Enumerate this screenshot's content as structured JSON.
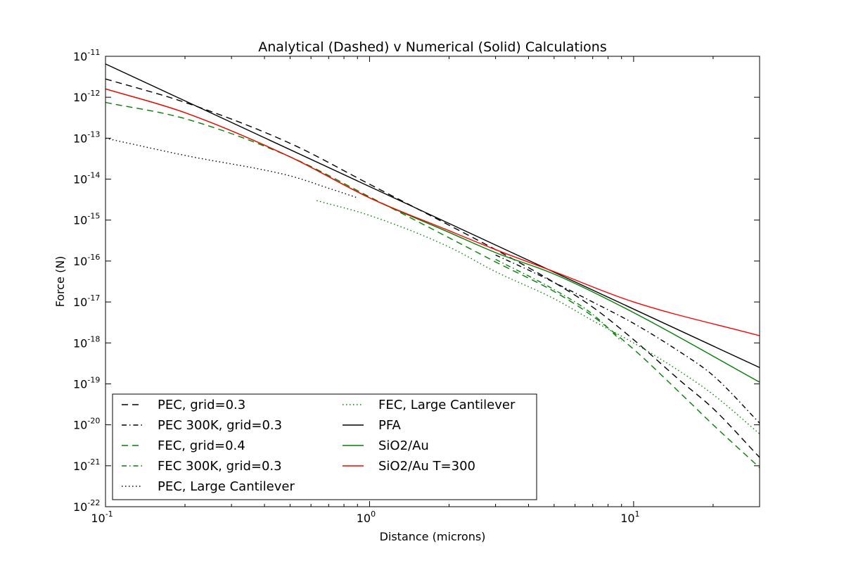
{
  "chart_data": {
    "type": "line",
    "title": "Analytical (Dashed) v Numerical (Solid) Calculations",
    "xlabel": "Distance (microns)",
    "ylabel": "Force (N)",
    "xscale": "log",
    "yscale": "log",
    "xlim": [
      0.1,
      30
    ],
    "ylim": [
      1e-22,
      1e-11
    ],
    "grid": false,
    "legend_location": "lower-left",
    "legend_columns": 2,
    "x_ticks": [
      {
        "base": "10",
        "exp": "-1",
        "value": 0.1
      },
      {
        "base": "10",
        "exp": "0",
        "value": 1
      },
      {
        "base": "10",
        "exp": "1",
        "value": 10
      }
    ],
    "y_ticks": [
      {
        "base": "10",
        "exp": "-11",
        "value": 1e-11
      },
      {
        "base": "10",
        "exp": "-12",
        "value": 1e-12
      },
      {
        "base": "10",
        "exp": "-13",
        "value": 1e-13
      },
      {
        "base": "10",
        "exp": "-14",
        "value": 1e-14
      },
      {
        "base": "10",
        "exp": "-15",
        "value": 1e-15
      },
      {
        "base": "10",
        "exp": "-16",
        "value": 1e-16
      },
      {
        "base": "10",
        "exp": "-17",
        "value": 1e-17
      },
      {
        "base": "10",
        "exp": "-18",
        "value": 1e-18
      },
      {
        "base": "10",
        "exp": "-19",
        "value": 1e-19
      },
      {
        "base": "10",
        "exp": "-20",
        "value": 1e-20
      },
      {
        "base": "10",
        "exp": "-21",
        "value": 1e-21
      },
      {
        "base": "10",
        "exp": "-22",
        "value": 1e-22
      }
    ],
    "series": [
      {
        "name": "PEC, grid=0.3",
        "color": "#000000",
        "style": "dashed",
        "x": [
          0.1,
          0.2,
          0.5,
          1,
          2,
          3,
          5,
          7,
          10,
          15,
          20,
          30
        ],
        "y": [
          2.8e-12,
          7.5e-13,
          7.5e-14,
          7.5e-15,
          7.5e-16,
          1.9e-16,
          3e-17,
          7.5e-18,
          1.2e-18,
          1.2e-19,
          2.5e-20,
          1.6e-21
        ]
      },
      {
        "name": "PEC 300K, grid=0.3",
        "color": "#000000",
        "style": "dashdot",
        "x": [
          3,
          4,
          5,
          7,
          10,
          15,
          20,
          30
        ],
        "y": [
          1.4e-16,
          6e-17,
          3e-17,
          1e-17,
          3e-18,
          6e-19,
          1.6e-19,
          1.1e-20
        ]
      },
      {
        "name": "FEC, grid=0.4",
        "color": "#008000",
        "style": "dashed",
        "x": [
          0.1,
          0.2,
          0.5,
          1,
          2,
          3,
          5,
          7,
          10,
          15,
          20,
          30
        ],
        "y": [
          7.5e-13,
          3e-13,
          3.5e-14,
          3.7e-15,
          3.7e-16,
          9.5e-17,
          1.8e-17,
          4.5e-18,
          7e-19,
          6e-20,
          1e-20,
          9e-22
        ]
      },
      {
        "name": "FEC 300K, grid=0.3",
        "color": "#008000",
        "style": "dashdot",
        "x": [
          3,
          5,
          7,
          9
        ],
        "y": [
          1.1e-16,
          2e-17,
          5e-18,
          1.1e-18
        ]
      },
      {
        "name": "PEC, Large Cantilever",
        "color": "#000000",
        "style": "dotted",
        "x": [
          0.1,
          0.2,
          0.5,
          0.7,
          0.9
        ],
        "y": [
          1e-13,
          3.8e-14,
          1.2e-14,
          6e-15,
          3.5e-15
        ]
      },
      {
        "name": "FEC, Large Cantilever",
        "color": "#008000",
        "style": "dotted",
        "x": [
          0.63,
          1,
          2,
          3,
          5,
          7,
          10,
          15,
          20,
          30
        ],
        "y": [
          3e-15,
          1.3e-15,
          2.2e-16,
          5.5e-17,
          1.2e-17,
          3.5e-18,
          1e-18,
          2e-19,
          5.5e-20,
          6e-21
        ]
      },
      {
        "name": "PFA",
        "color": "#000000",
        "style": "solid",
        "x": [
          0.1,
          30
        ],
        "y": [
          6.5e-12,
          2.5e-19
        ]
      },
      {
        "name": "SiO2/Au",
        "color": "#008000",
        "style": "solid",
        "x": [
          0.1,
          0.2,
          0.5,
          1,
          2,
          3,
          5,
          10,
          30
        ],
        "y": [
          1.6e-12,
          4.2e-13,
          3.5e-14,
          3.5e-15,
          5e-16,
          1.6e-16,
          4.8e-17,
          5.5e-18,
          1.1e-19
        ]
      },
      {
        "name": "SiO2/Au T=300",
        "color": "#FF0000",
        "style": "solid",
        "x": [
          0.1,
          0.2,
          0.5,
          1,
          2,
          3,
          5,
          10,
          30
        ],
        "y": [
          1.6e-12,
          4.2e-13,
          3.5e-14,
          3.5e-15,
          5.5e-16,
          1.9e-16,
          5.5e-17,
          1e-17,
          1.5e-18
        ]
      }
    ]
  }
}
